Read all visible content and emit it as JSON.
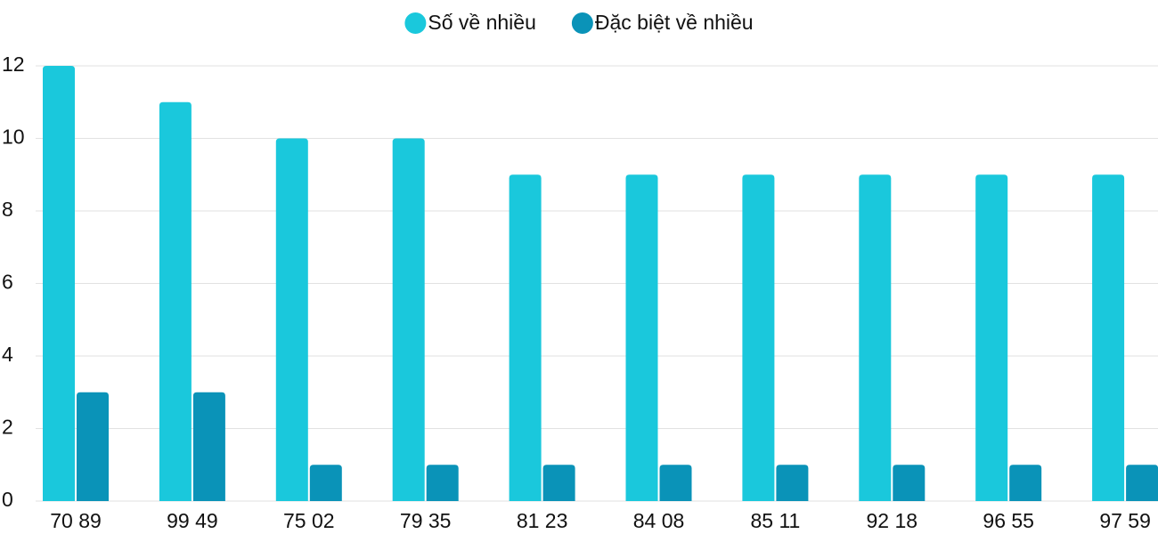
{
  "chart_data": {
    "type": "bar",
    "categories": [
      "70 89",
      "99 49",
      "75 02",
      "79 35",
      "81 23",
      "84 08",
      "85 11",
      "92 18",
      "96 55",
      "97 59"
    ],
    "series": [
      {
        "name": "Số về nhiều",
        "color": "#1ac8dc",
        "values": [
          12,
          11,
          10,
          10,
          9,
          9,
          9,
          9,
          9,
          9
        ]
      },
      {
        "name": "Đặc biệt về nhiều",
        "color": "#0a93b8",
        "values": [
          3,
          3,
          1,
          1,
          1,
          1,
          1,
          1,
          1,
          1
        ]
      }
    ],
    "ylim": [
      0,
      12
    ],
    "yticks": [
      0,
      2,
      4,
      6,
      8,
      10,
      12
    ],
    "grid": true,
    "legend": "top"
  }
}
